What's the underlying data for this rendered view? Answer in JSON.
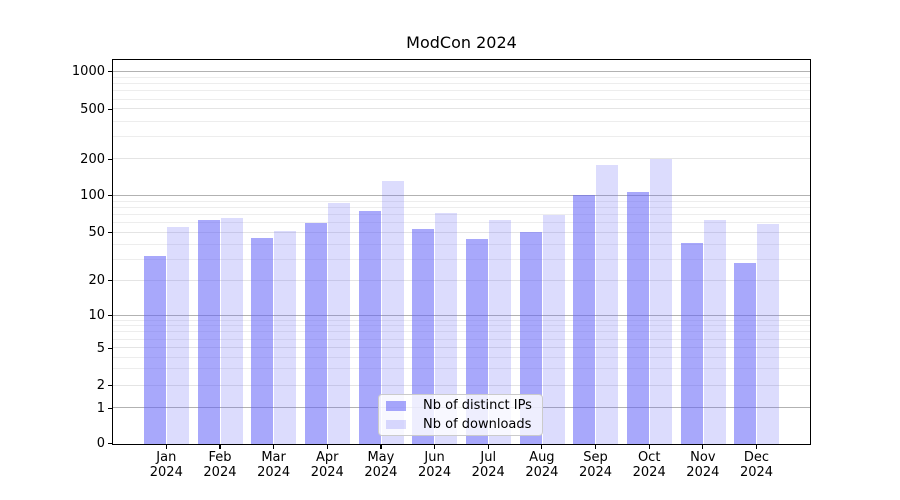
{
  "chart_data": {
    "type": "bar",
    "title": "ModCon 2024",
    "categories": [
      "Jan 2024",
      "Feb 2024",
      "Mar 2024",
      "Apr 2024",
      "May 2024",
      "Jun 2024",
      "Jul 2024",
      "Aug 2024",
      "Sep 2024",
      "Oct 2024",
      "Nov 2024",
      "Dec 2024"
    ],
    "series": [
      {
        "name": "Nb of distinct IPs",
        "color": "#6060f8",
        "alpha": 0.55,
        "values": [
          32,
          63,
          45,
          60,
          75,
          54,
          44,
          51,
          102,
          108,
          41,
          28
        ]
      },
      {
        "name": "Nb of downloads",
        "color": "#6060f8",
        "alpha": 0.22,
        "values": [
          56,
          66,
          52,
          87,
          133,
          72,
          64,
          70,
          178,
          200,
          64,
          59
        ]
      }
    ],
    "xlabel": "",
    "ylabel": "",
    "yscale": "symlog",
    "yticks": [
      0,
      1,
      2,
      5,
      10,
      20,
      50,
      100,
      200,
      500,
      1000
    ],
    "ylim": [
      0,
      1300
    ],
    "grid": true,
    "legend_position": "lower center"
  }
}
